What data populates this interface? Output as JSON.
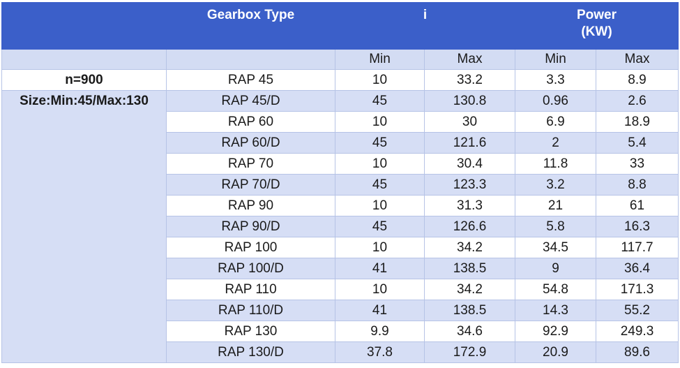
{
  "header": {
    "gearbox_type": "Gearbox Type",
    "i": "i",
    "power_line1": "Power",
    "power_line2": "(KW)",
    "min": "Min",
    "max": "Max"
  },
  "side": {
    "n_label": "n=900",
    "size_label": "Size:Min:45/Max:130"
  },
  "rows": [
    {
      "type": "RAP 45",
      "i_min": "10",
      "i_max": "33.2",
      "p_min": "3.3",
      "p_max": "8.9"
    },
    {
      "type": "RAP 45/D",
      "i_min": "45",
      "i_max": "130.8",
      "p_min": "0.96",
      "p_max": "2.6"
    },
    {
      "type": "RAP 60",
      "i_min": "10",
      "i_max": "30",
      "p_min": "6.9",
      "p_max": "18.9"
    },
    {
      "type": "RAP 60/D",
      "i_min": "45",
      "i_max": "121.6",
      "p_min": "2",
      "p_max": "5.4"
    },
    {
      "type": "RAP 70",
      "i_min": "10",
      "i_max": "30.4",
      "p_min": "11.8",
      "p_max": "33"
    },
    {
      "type": "RAP 70/D",
      "i_min": "45",
      "i_max": "123.3",
      "p_min": "3.2",
      "p_max": "8.8"
    },
    {
      "type": "RAP 90",
      "i_min": "10",
      "i_max": "31.3",
      "p_min": "21",
      "p_max": "61"
    },
    {
      "type": "RAP 90/D",
      "i_min": "45",
      "i_max": "126.6",
      "p_min": "5.8",
      "p_max": "16.3"
    },
    {
      "type": "RAP 100",
      "i_min": "10",
      "i_max": "34.2",
      "p_min": "34.5",
      "p_max": "117.7"
    },
    {
      "type": "RAP 100/D",
      "i_min": "41",
      "i_max": "138.5",
      "p_min": "9",
      "p_max": "36.4"
    },
    {
      "type": "RAP 110",
      "i_min": "10",
      "i_max": "34.2",
      "p_min": "54.8",
      "p_max": "171.3"
    },
    {
      "type": "RAP 110/D",
      "i_min": "41",
      "i_max": "138.5",
      "p_min": "14.3",
      "p_max": "55.2"
    },
    {
      "type": "RAP 130",
      "i_min": "9.9",
      "i_max": "34.6",
      "p_min": "92.9",
      "p_max": "249.3"
    },
    {
      "type": "RAP 130/D",
      "i_min": "37.8",
      "i_max": "172.9",
      "p_min": "20.9",
      "p_max": "89.6"
    }
  ]
}
